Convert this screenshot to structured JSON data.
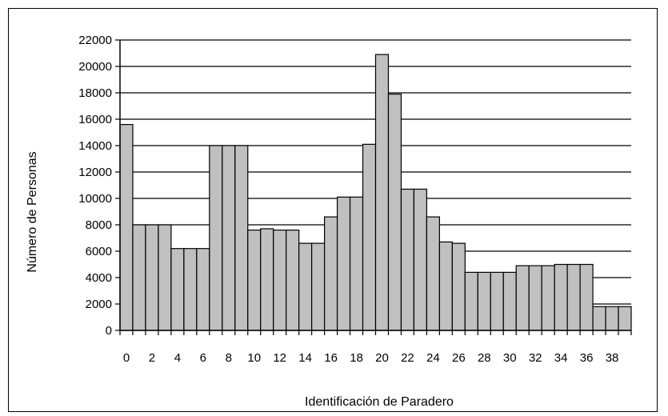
{
  "chart_data": {
    "type": "bar",
    "title": "",
    "xlabel": "Identificación de Paradero",
    "ylabel": "Número de Personas",
    "ylim": [
      0,
      22000
    ],
    "yticks": [
      0,
      2000,
      4000,
      6000,
      8000,
      10000,
      12000,
      14000,
      16000,
      18000,
      20000,
      22000
    ],
    "xtick_labels": [
      "0",
      "2",
      "4",
      "6",
      "8",
      "10",
      "12",
      "14",
      "16",
      "18",
      "20",
      "22",
      "24",
      "26",
      "28",
      "30",
      "32",
      "34",
      "36",
      "38"
    ],
    "categories": [
      0,
      1,
      2,
      3,
      4,
      5,
      6,
      7,
      8,
      9,
      10,
      11,
      12,
      13,
      14,
      15,
      16,
      17,
      18,
      19,
      20,
      21,
      22,
      23,
      24,
      25,
      26,
      27,
      28,
      29,
      30,
      31,
      32,
      33,
      34,
      35,
      36,
      37,
      38,
      39
    ],
    "values": [
      15600,
      8000,
      8000,
      8000,
      6200,
      6200,
      6200,
      14000,
      14000,
      14000,
      7600,
      7700,
      7600,
      7600,
      6600,
      6600,
      8600,
      10100,
      10100,
      14100,
      20900,
      17900,
      10700,
      10700,
      8600,
      6700,
      6600,
      4400,
      4400,
      4400,
      4400,
      4900,
      4900,
      4900,
      5000,
      5000,
      5000,
      1800,
      1800,
      1800
    ],
    "bar_color": "#c0c0c0",
    "grid": true,
    "legend": "none"
  }
}
